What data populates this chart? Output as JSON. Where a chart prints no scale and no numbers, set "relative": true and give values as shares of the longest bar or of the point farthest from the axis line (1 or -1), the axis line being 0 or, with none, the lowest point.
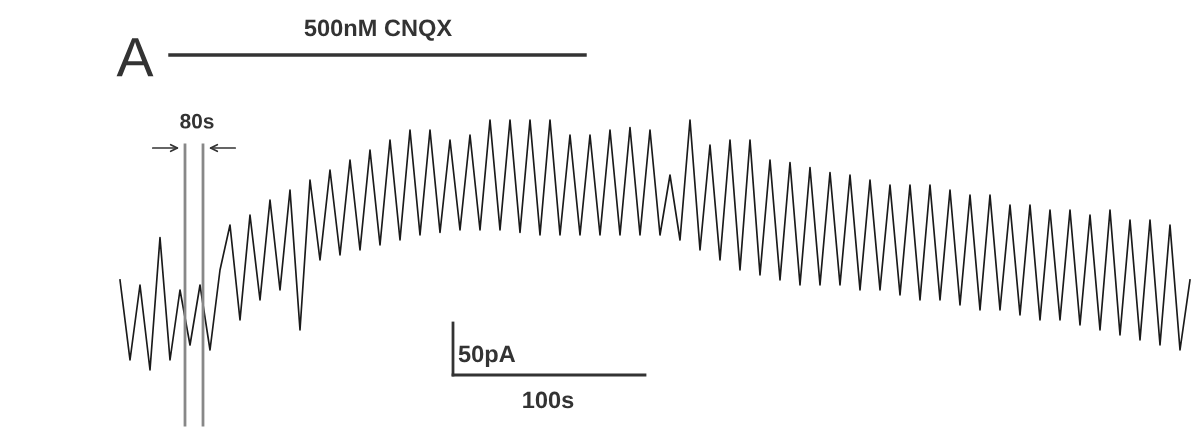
{
  "chart_data": {
    "type": "line",
    "relative": true,
    "annotations": [
      "A",
      "500nM CNQX",
      "80s",
      "50pA",
      "100s"
    ],
    "categories": [
      null,
      null,
      null,
      null,
      null,
      null,
      null,
      null,
      null,
      null,
      null,
      null,
      null,
      null,
      null,
      null,
      null,
      null,
      null,
      null,
      null,
      null,
      null,
      null,
      null,
      null,
      null,
      null,
      null,
      null,
      null,
      null,
      null,
      null,
      null,
      null,
      null,
      null,
      null,
      null,
      null,
      null,
      null,
      null,
      null,
      null,
      null,
      null,
      null,
      null,
      null,
      null,
      null,
      null,
      null,
      null,
      null,
      null,
      null,
      null,
      null,
      null,
      null,
      null,
      null,
      null,
      null,
      null,
      null,
      null,
      null,
      null,
      null,
      null,
      null,
      null,
      null,
      null,
      null,
      null,
      null,
      null,
      null,
      null,
      null,
      null,
      null,
      null,
      null,
      null,
      null,
      null,
      null,
      null,
      null,
      null,
      null,
      null,
      null,
      null,
      null,
      null,
      null,
      null,
      null,
      null,
      null,
      null
    ],
    "series": [
      {
        "color": "#1a1a1a",
        "values": [
          0.36,
          0.04,
          0.34,
          0,
          0.53,
          0.04,
          0.32,
          0.1,
          0.34,
          0.08,
          0.4,
          0.58,
          0.2,
          0.62,
          0.28,
          0.68,
          0.32,
          0.72,
          0.16,
          0.76,
          0.44,
          0.8,
          0.46,
          0.84,
          0.48,
          0.88,
          0.5,
          0.92,
          0.52,
          0.96,
          0.54,
          0.96,
          0.55,
          0.92,
          0.56,
          0.94,
          0.56,
          1.0,
          0.56,
          1.0,
          0.55,
          1.0,
          0.54,
          1.0,
          0.54,
          0.94,
          0.54,
          0.94,
          0.54,
          0.96,
          0.54,
          0.97,
          0.54,
          0.96,
          0.54,
          0.78,
          0.52,
          1.0,
          0.48,
          0.9,
          0.44,
          0.92,
          0.4,
          0.92,
          0.38,
          0.84,
          0.36,
          0.83,
          0.34,
          0.81,
          0.34,
          0.79,
          0.34,
          0.78,
          0.32,
          0.76,
          0.32,
          0.74,
          0.3,
          0.74,
          0.28,
          0.74,
          0.28,
          0.72,
          0.26,
          0.7,
          0.24,
          0.7,
          0.24,
          0.66,
          0.22,
          0.66,
          0.2,
          0.64,
          0.2,
          0.64,
          0.18,
          0.62,
          0.16,
          0.64,
          0.14,
          0.6,
          0.12,
          0.6,
          0.1,
          0.58,
          0.08,
          0.36
        ]
      }
    ]
  }
}
